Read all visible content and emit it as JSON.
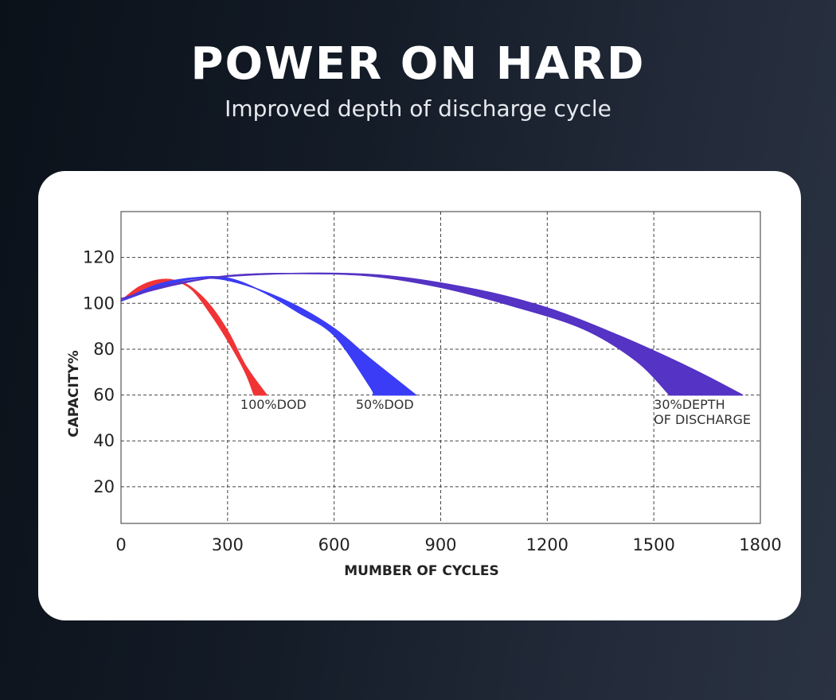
{
  "header": {
    "title": "POWER ON HARD",
    "subtitle": "Improved depth of discharge cycle"
  },
  "chart_data": {
    "type": "area",
    "xlabel": "MUMBER OF CYCLES",
    "ylabel": "CAPACITY%",
    "xlim": [
      0,
      1800
    ],
    "ylim": [
      4,
      140
    ],
    "xticks": [
      0,
      300,
      600,
      900,
      1200,
      1500,
      1800
    ],
    "yticks": [
      20,
      40,
      60,
      80,
      100,
      120
    ],
    "grid": true,
    "series": [
      {
        "label_lines": [
          "100%DOD"
        ],
        "color": "#f03436",
        "upper": [
          [
            0,
            101
          ],
          [
            50,
            107
          ],
          [
            100,
            110
          ],
          [
            150,
            110
          ],
          [
            200,
            106
          ],
          [
            250,
            96
          ],
          [
            300,
            84
          ],
          [
            350,
            70
          ],
          [
            375,
            60
          ]
        ],
        "lower": [
          [
            0,
            101
          ],
          [
            60,
            105
          ],
          [
            120,
            109
          ],
          [
            175,
            109
          ],
          [
            240,
            101
          ],
          [
            300,
            88
          ],
          [
            350,
            73
          ],
          [
            410,
            60
          ]
        ],
        "label_anchor": [
          336,
          54
        ]
      },
      {
        "label_lines": [
          "50%DOD"
        ],
        "color": "#3b3cf5",
        "upper": [
          [
            0,
            101
          ],
          [
            100,
            108
          ],
          [
            200,
            111
          ],
          [
            300,
            111
          ],
          [
            400,
            105
          ],
          [
            500,
            96
          ],
          [
            600,
            86
          ],
          [
            700,
            64
          ],
          [
            710,
            60
          ]
        ],
        "lower": [
          [
            0,
            101
          ],
          [
            150,
            109
          ],
          [
            250,
            111
          ],
          [
            350,
            108
          ],
          [
            480,
            100
          ],
          [
            600,
            89
          ],
          [
            700,
            76
          ],
          [
            830,
            60
          ]
        ],
        "label_anchor": [
          661,
          54
        ]
      },
      {
        "label_lines": [
          "30%DEPTH",
          "OF DISCHARGE"
        ],
        "color": "#5533c4",
        "upper": [
          [
            0,
            102
          ],
          [
            150,
            108
          ],
          [
            300,
            112
          ],
          [
            480,
            113
          ],
          [
            700,
            112
          ],
          [
            900,
            107
          ],
          [
            1100,
            99
          ],
          [
            1300,
            89
          ],
          [
            1450,
            75
          ],
          [
            1545,
            60
          ]
        ],
        "lower": [
          [
            0,
            102
          ],
          [
            200,
            110
          ],
          [
            480,
            113
          ],
          [
            750,
            112
          ],
          [
            1000,
            106
          ],
          [
            1200,
            98
          ],
          [
            1400,
            86
          ],
          [
            1600,
            72
          ],
          [
            1750,
            60
          ]
        ],
        "label_anchor": [
          1500,
          54
        ]
      }
    ]
  }
}
